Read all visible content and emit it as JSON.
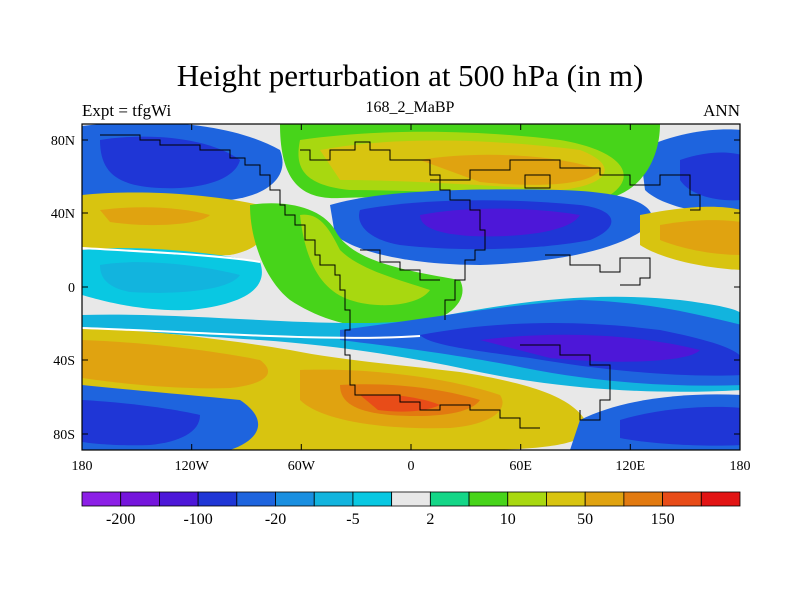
{
  "title": "Height perturbation at 500 hPa (in m)",
  "left_label": "Expt = tfgWi",
  "center_label": "168_2_MaBP",
  "right_label": "ANN",
  "lat_ticks": [
    "80N",
    "40N",
    "0",
    "40S",
    "80S"
  ],
  "lon_ticks": [
    "180",
    "120W",
    "60W",
    "0",
    "60E",
    "120E",
    "180"
  ],
  "colorbar": {
    "colors": [
      "#8c1fe6",
      "#7515dc",
      "#4d17d8",
      "#1f36d6",
      "#1e64de",
      "#1a8fe0",
      "#12b4de",
      "#09c8e2",
      "#e8e8e8",
      "#14d687",
      "#47d41a",
      "#a8d810",
      "#d8c410",
      "#e0a310",
      "#e27a10",
      "#e84c18",
      "#e21414"
    ],
    "labels": [
      "-200",
      "-100",
      "-20",
      "-5",
      "2",
      "10",
      "50",
      "150"
    ]
  },
  "colors": {
    "land_outline": "#000000",
    "missing": "#e8e8e8"
  }
}
